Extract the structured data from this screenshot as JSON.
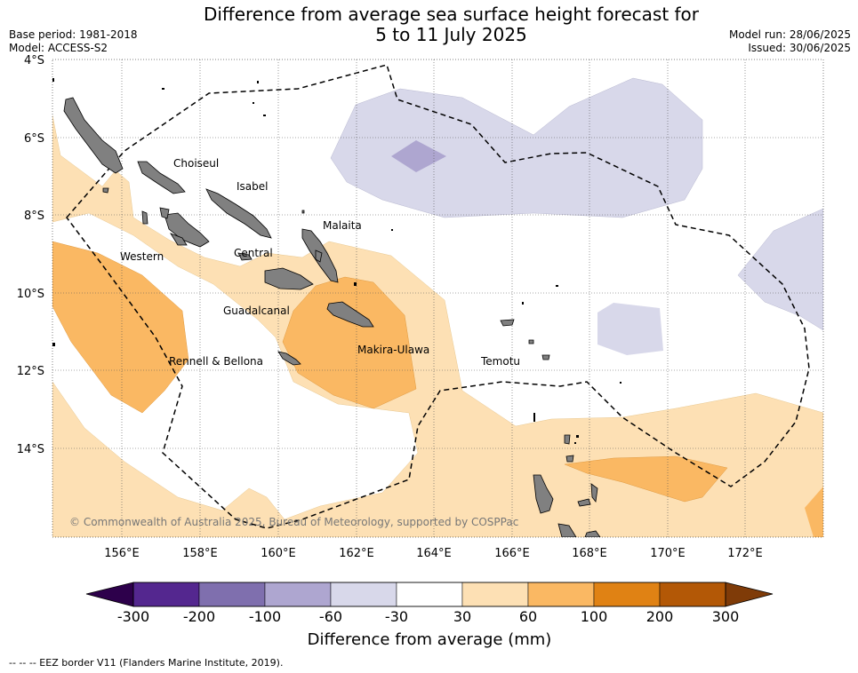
{
  "header": {
    "title_line1": "Difference from average sea surface height forecast for",
    "title_line2": "5 to 11 July 2025",
    "base_period": "Base period: 1981-2018",
    "model": "Model: ACCESS-S2",
    "model_run": "Model run: 28/06/2025",
    "issued": "Issued: 30/06/2025"
  },
  "map": {
    "lat_labels": [
      "4°S",
      "6°S",
      "8°S",
      "10°S",
      "12°S",
      "14°S"
    ],
    "lon_labels": [
      "156°E",
      "158°E",
      "160°E",
      "162°E",
      "164°E",
      "166°E",
      "168°E",
      "170°E",
      "172°E"
    ],
    "province_labels": [
      "Choiseul",
      "Isabel",
      "Malaita",
      "Western",
      "Central",
      "Guadalcanal",
      "Makira-Ulawa",
      "Rennell & Bellona",
      "Temotu"
    ],
    "copyright": "© Commonwealth of Australia 2025, Bureau of Meteorology, supported by COSPPac",
    "colors": {
      "land": "#808080",
      "band_m60_m30": "#d8d8ea",
      "band_m100_m60": "#aea6d0",
      "band_30_60": "#fde0b4",
      "band_60_100": "#fab863"
    }
  },
  "colorbar": {
    "tick_labels": [
      "-300",
      "-200",
      "-100",
      "-60",
      "-30",
      "30",
      "60",
      "100",
      "200",
      "300"
    ],
    "colors": [
      "#54278f",
      "#7f6fae",
      "#aea6d0",
      "#d8d8ea",
      "#ffffff",
      "#fde0b4",
      "#fab863",
      "#e08214",
      "#b35806"
    ],
    "under_color": "#2d004b",
    "over_color": "#7f3b08",
    "label": "Difference from average (mm)"
  },
  "footnote": "--  --  -- EEZ border V11 (Flanders Marine Institute, 2019)."
}
